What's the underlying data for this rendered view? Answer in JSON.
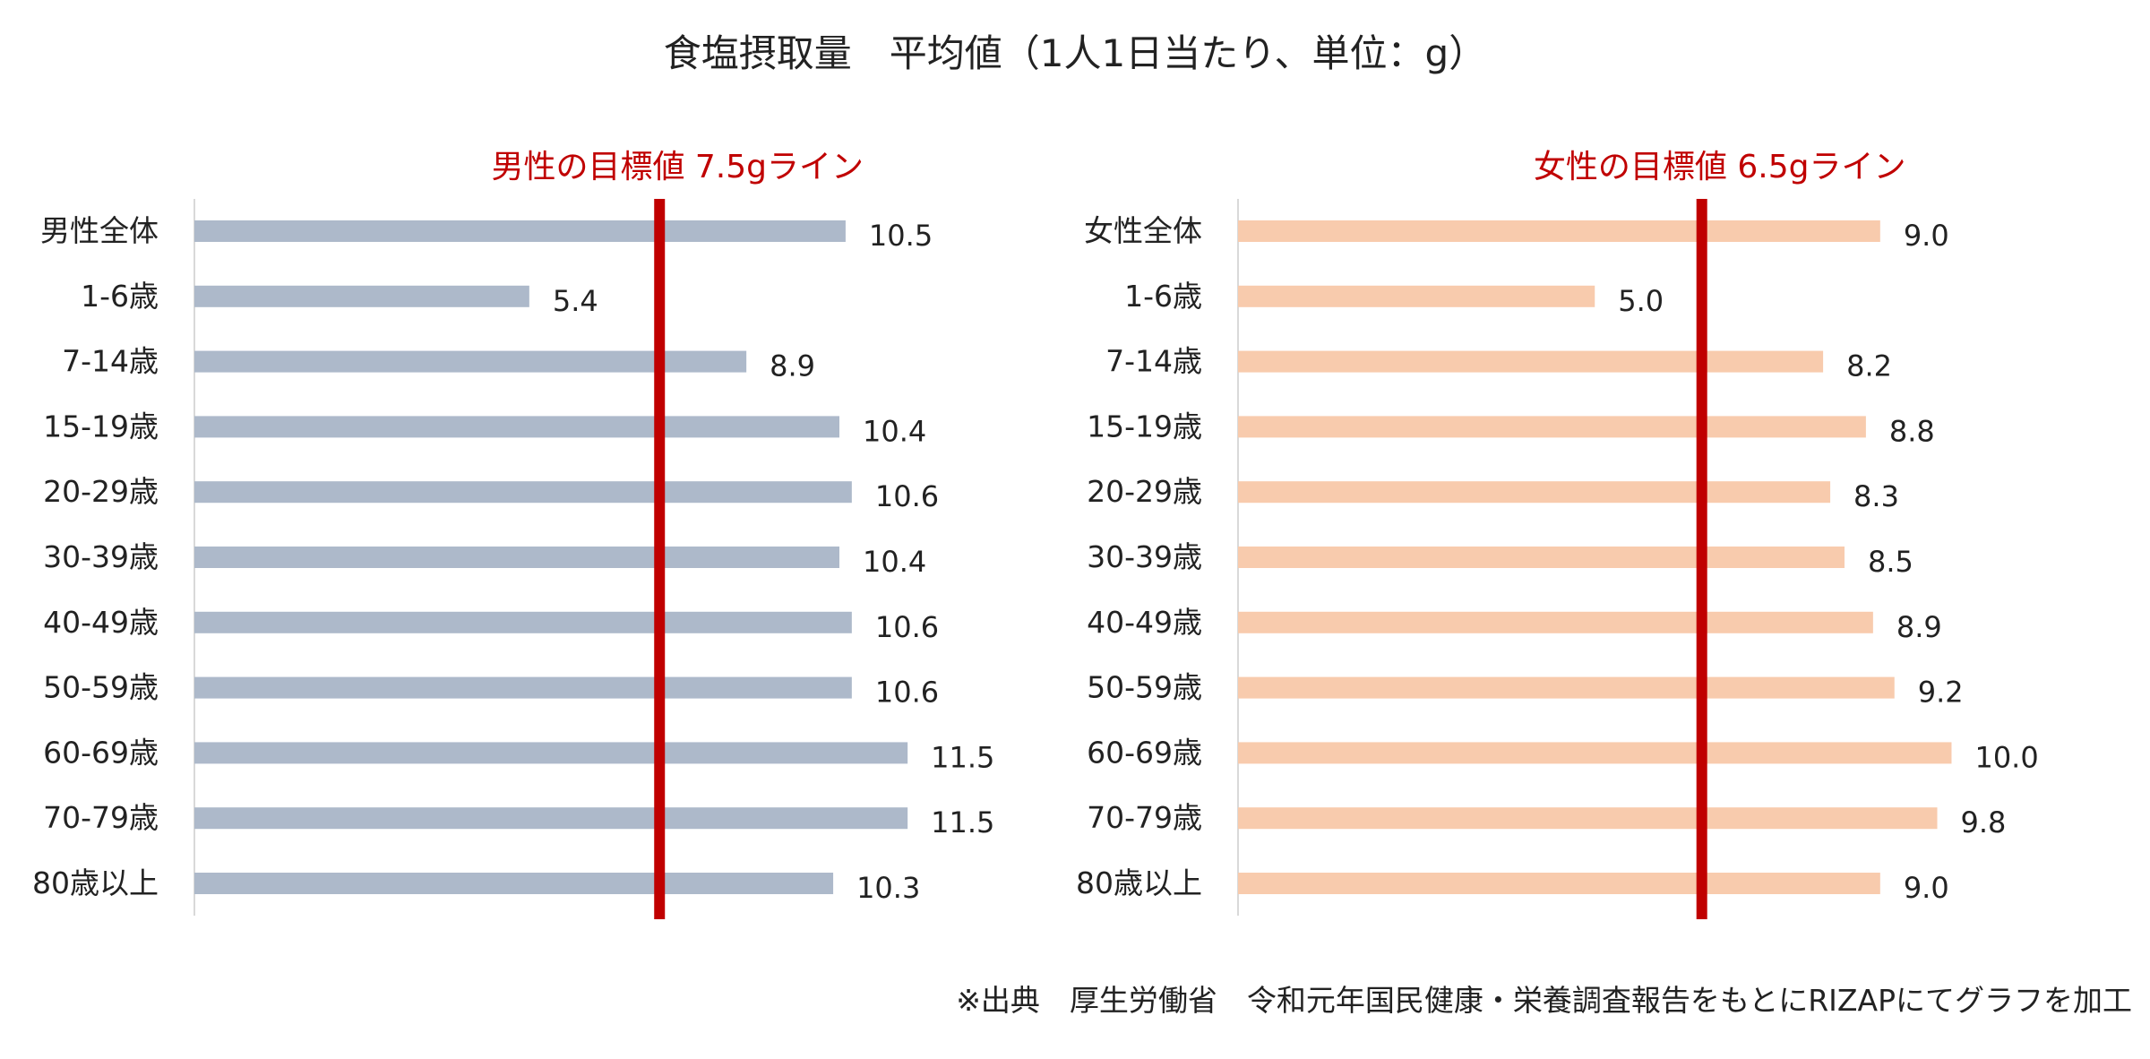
{
  "title": "食塩摂取量　平均値（1人1日当たり、単位：g）",
  "source": "※出典　厚生労働省　令和元年国民健康・栄養調査報告をもとにRIZAPにてグラフを加工",
  "chart_data": [
    {
      "type": "bar",
      "orientation": "horizontal",
      "categories": [
        "男性全体",
        "1-6歳",
        "7-14歳",
        "15-19歳",
        "20-29歳",
        "30-39歳",
        "40-49歳",
        "50-59歳",
        "60-69歳",
        "70-79歳",
        "80歳以上"
      ],
      "values": [
        10.5,
        5.4,
        8.9,
        10.4,
        10.6,
        10.4,
        10.6,
        10.6,
        11.5,
        11.5,
        10.3
      ],
      "value_labels": [
        "10.5",
        "5.4",
        "8.9",
        "10.4",
        "10.6",
        "10.4",
        "10.6",
        "10.6",
        "11.5",
        "11.5",
        "10.3"
      ],
      "bar_color": "#adb9ca",
      "xlim": [
        0,
        13
      ],
      "target": {
        "value": 7.5,
        "label": "男性の目標値 7.5gライン",
        "color": "#c00000"
      }
    },
    {
      "type": "bar",
      "orientation": "horizontal",
      "categories": [
        "女性全体",
        "1-6歳",
        "7-14歳",
        "15-19歳",
        "20-29歳",
        "30-39歳",
        "40-49歳",
        "50-59歳",
        "60-69歳",
        "70-79歳",
        "80歳以上"
      ],
      "values": [
        9.0,
        5.0,
        8.2,
        8.8,
        8.3,
        8.5,
        8.9,
        9.2,
        10.0,
        9.8,
        9.0
      ],
      "value_labels": [
        "9.0",
        "5.0",
        "8.2",
        "8.8",
        "8.3",
        "8.5",
        "8.9",
        "9.2",
        "10.0",
        "9.8",
        "9.0"
      ],
      "bar_color": "#f8cbad",
      "xlim": [
        0,
        11.3
      ],
      "target": {
        "value": 6.5,
        "label": "女性の目標値 6.5gライン",
        "color": "#c00000"
      }
    }
  ]
}
